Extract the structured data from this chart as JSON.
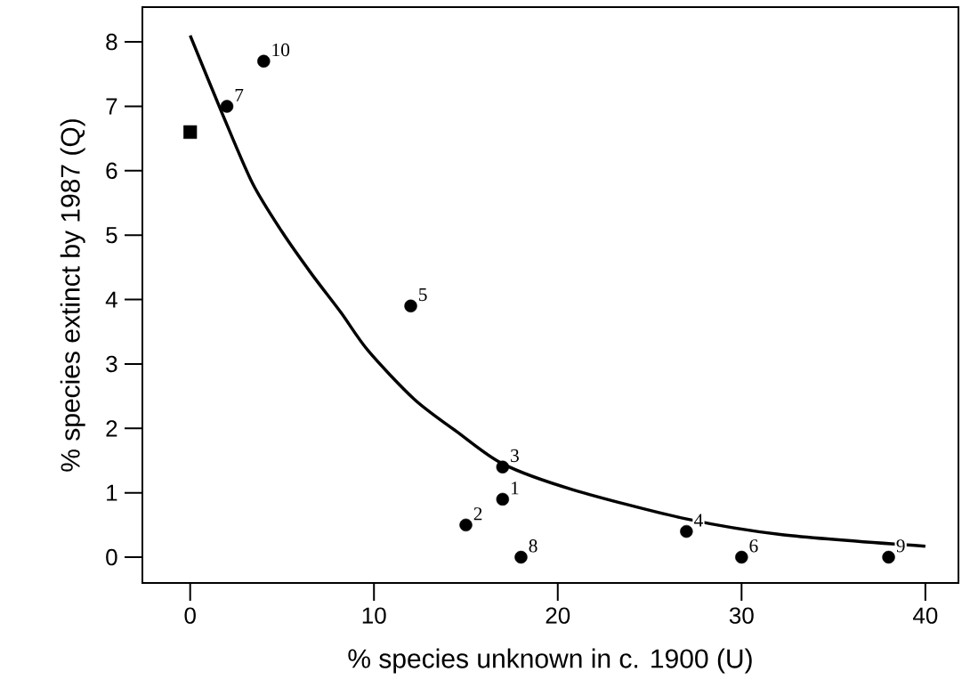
{
  "chart_data": {
    "type": "scatter",
    "xlabel": "% species unknown in c. 1900 (U)",
    "ylabel": "% species extinct by 1987 (Q)",
    "xlim": [
      -2.6,
      41.8
    ],
    "ylim": [
      -0.4,
      8.54
    ],
    "xticks": [
      0,
      10,
      20,
      30,
      40
    ],
    "yticks": [
      0,
      1,
      2,
      3,
      4,
      5,
      6,
      7,
      8
    ],
    "grid": false,
    "series": [
      {
        "type": "scatter",
        "marker": "circle",
        "color": "#000000",
        "x": [
          17,
          15,
          17,
          27,
          12,
          30,
          2,
          18,
          38,
          4
        ],
        "values": [
          0.9,
          0.5,
          1.4,
          0.4,
          3.9,
          0,
          7,
          0,
          0,
          7.7
        ]
      },
      {
        "type": "scatter",
        "marker": "square",
        "color": "#000000",
        "x": [
          0
        ],
        "values": [
          6.6
        ]
      },
      {
        "type": "line",
        "marker": "none",
        "line_style": "solid",
        "color": "#000000",
        "x": [
          0,
          1.8,
          3.4,
          5,
          6.6,
          8.2,
          9.7,
          12.2,
          14.5,
          17,
          20.8,
          26.9,
          32.2,
          40
        ],
        "values": [
          8.1,
          6.85,
          5.8,
          5.05,
          4.4,
          3.8,
          3.2,
          2.45,
          1.95,
          1.45,
          1.05,
          0.6,
          0.35,
          0.17
        ]
      }
    ],
    "annotations": [
      {
        "text": "1",
        "x": 17,
        "y": 0.9
      },
      {
        "text": "2",
        "x": 15,
        "y": 0.5
      },
      {
        "text": "3",
        "x": 17,
        "y": 1.4
      },
      {
        "text": "4",
        "x": 27,
        "y": 0.4
      },
      {
        "text": "5",
        "x": 12,
        "y": 3.9
      },
      {
        "text": "6",
        "x": 30,
        "y": 0
      },
      {
        "text": "7",
        "x": 2,
        "y": 7
      },
      {
        "text": "8",
        "x": 18,
        "y": 0
      },
      {
        "text": "9",
        "x": 38,
        "y": 0
      },
      {
        "text": "10",
        "x": 4,
        "y": 7.7
      }
    ]
  }
}
